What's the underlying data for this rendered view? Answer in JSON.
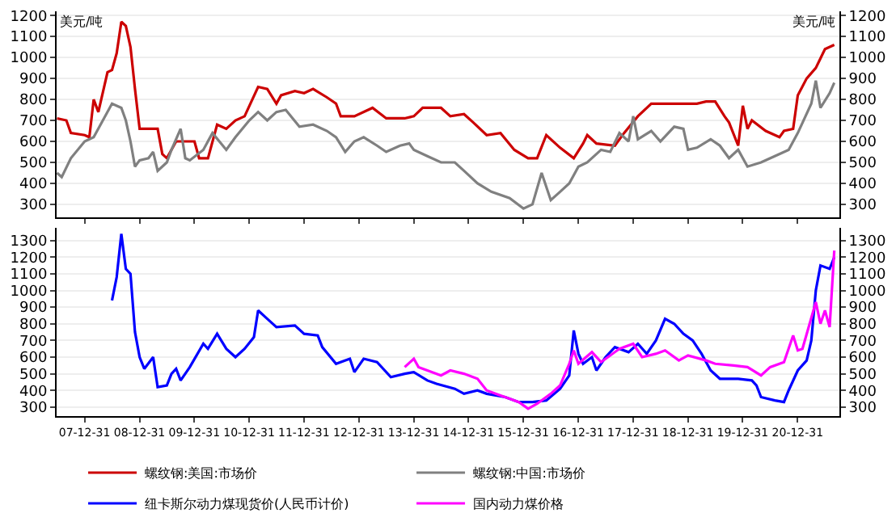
{
  "chart_data": [
    {
      "type": "line",
      "ylabel": "美元/吨",
      "y2label": "美元/吨",
      "xlim": [
        "2007-06-28",
        "2021-10-05"
      ],
      "xticks": [
        {
          "value": "2007-12-31",
          "label": null
        },
        {
          "value": "2008-12-31",
          "label": null
        },
        {
          "value": "2009-12-31",
          "label": null
        },
        {
          "value": "2010-12-31",
          "label": null
        },
        {
          "value": "2011-12-31",
          "label": null
        },
        {
          "value": "2012-12-31",
          "label": null
        },
        {
          "value": "2013-12-31",
          "label": null
        },
        {
          "value": "2014-12-31",
          "label": null
        },
        {
          "value": "2015-12-31",
          "label": null
        },
        {
          "value": "2016-12-31",
          "label": null
        },
        {
          "value": "2017-12-31",
          "label": null
        },
        {
          "value": "2018-12-31",
          "label": null
        },
        {
          "value": "2019-12-31",
          "label": null
        },
        {
          "value": "2020-12-31",
          "label": null
        }
      ],
      "ylim": [
        240,
        1220
      ],
      "yticks": [
        300,
        400,
        500,
        600,
        700,
        800,
        900,
        1000,
        1100,
        1200
      ],
      "y2lim": [
        240,
        1220
      ],
      "y2ticks": [
        300,
        400,
        500,
        600,
        700,
        800,
        900,
        1000,
        1100,
        1200
      ],
      "tick_labels": "y",
      "grid": "y",
      "legend": "bottom",
      "series": [
        {
          "name": "螺纹钢:美国:市场价",
          "color": "#cc0000",
          "x": [
            "2007-07",
            "2007-09",
            "2007-10",
            "2008-01",
            "2008-02",
            "2008-03",
            "2008-04",
            "2008-06",
            "2008-07",
            "2008-08",
            "2008-09",
            "2008-10",
            "2008-11",
            "2008-12",
            "2009-01",
            "2009-05",
            "2009-06",
            "2009-07",
            "2009-09",
            "2010-01",
            "2010-02",
            "2010-04",
            "2010-06",
            "2010-08",
            "2010-10",
            "2010-12",
            "2011-03",
            "2011-05",
            "2011-07",
            "2011-08",
            "2011-11",
            "2012-01",
            "2012-03",
            "2012-06",
            "2012-08",
            "2012-09",
            "2012-12",
            "2013-04",
            "2013-07",
            "2013-11",
            "2014-01",
            "2014-03",
            "2014-07",
            "2014-09",
            "2014-12",
            "2015-02",
            "2015-05",
            "2015-08",
            "2015-11",
            "2016-02",
            "2016-04",
            "2016-06",
            "2016-09",
            "2016-12",
            "2017-02",
            "2017-03",
            "2017-05",
            "2017-09",
            "2017-11",
            "2018-02",
            "2018-05",
            "2018-11",
            "2019-03",
            "2019-05",
            "2019-07",
            "2019-09",
            "2019-10",
            "2019-12",
            "2020-01",
            "2020-02",
            "2020-03",
            "2020-06",
            "2020-09",
            "2020-10",
            "2020-12",
            "2021-01",
            "2021-03",
            "2021-05",
            "2021-07",
            "2021-09"
          ],
          "values": [
            710,
            700,
            640,
            630,
            620,
            800,
            740,
            930,
            940,
            1020,
            1170,
            1150,
            1050,
            850,
            660,
            660,
            540,
            520,
            600,
            600,
            520,
            520,
            680,
            660,
            700,
            720,
            860,
            850,
            780,
            820,
            840,
            830,
            850,
            810,
            780,
            720,
            720,
            760,
            710,
            710,
            720,
            760,
            760,
            720,
            730,
            690,
            630,
            640,
            560,
            520,
            520,
            630,
            570,
            520,
            590,
            630,
            590,
            580,
            640,
            720,
            780,
            780,
            780,
            790,
            790,
            720,
            690,
            580,
            770,
            660,
            700,
            650,
            620,
            650,
            660,
            820,
            900,
            950,
            1040,
            1060
          ]
        },
        {
          "name": "螺纹钢:中国:市场价",
          "color": "#808080",
          "x": [
            "2007-07",
            "2007-08",
            "2007-10",
            "2008-01",
            "2008-03",
            "2008-05",
            "2008-07",
            "2008-09",
            "2008-10",
            "2008-11",
            "2008-12",
            "2009-01",
            "2009-03",
            "2009-04",
            "2009-05",
            "2009-07",
            "2009-08",
            "2009-10",
            "2009-11",
            "2009-12",
            "2010-03",
            "2010-05",
            "2010-08",
            "2010-10",
            "2011-01",
            "2011-03",
            "2011-05",
            "2011-07",
            "2011-09",
            "2011-12",
            "2012-03",
            "2012-06",
            "2012-08",
            "2012-10",
            "2012-12",
            "2013-02",
            "2013-05",
            "2013-07",
            "2013-10",
            "2013-12",
            "2014-01",
            "2014-04",
            "2014-07",
            "2014-10",
            "2014-12",
            "2015-03",
            "2015-06",
            "2015-10",
            "2016-01",
            "2016-03",
            "2016-05",
            "2016-07",
            "2016-09",
            "2016-11",
            "2017-01",
            "2017-03",
            "2017-06",
            "2017-08",
            "2017-10",
            "2017-12",
            "2018-01",
            "2018-02",
            "2018-05",
            "2018-07",
            "2018-10",
            "2018-12",
            "2019-01",
            "2019-03",
            "2019-06",
            "2019-08",
            "2019-10",
            "2019-12",
            "2020-02",
            "2020-05",
            "2020-08",
            "2020-11",
            "2021-01",
            "2021-04",
            "2021-05",
            "2021-06",
            "2021-08",
            "2021-09"
          ],
          "values": [
            450,
            430,
            520,
            600,
            620,
            700,
            780,
            760,
            700,
            600,
            480,
            510,
            520,
            550,
            460,
            500,
            560,
            660,
            520,
            510,
            560,
            640,
            560,
            620,
            700,
            740,
            700,
            740,
            750,
            670,
            680,
            650,
            620,
            550,
            600,
            620,
            580,
            550,
            580,
            590,
            560,
            530,
            500,
            500,
            460,
            400,
            360,
            330,
            280,
            300,
            450,
            320,
            360,
            400,
            480,
            500,
            560,
            550,
            640,
            600,
            720,
            610,
            650,
            600,
            670,
            660,
            560,
            570,
            610,
            580,
            520,
            560,
            480,
            500,
            530,
            560,
            640,
            780,
            890,
            760,
            830,
            880
          ]
        }
      ]
    },
    {
      "type": "line",
      "xlim": [
        "2007-06-28",
        "2021-10-05"
      ],
      "xticks": [
        {
          "value": "2007-12-31",
          "label": "07-12-31"
        },
        {
          "value": "2008-12-31",
          "label": "08-12-31"
        },
        {
          "value": "2009-12-31",
          "label": "09-12-31"
        },
        {
          "value": "2010-12-31",
          "label": "10-12-31"
        },
        {
          "value": "2011-12-31",
          "label": "11-12-31"
        },
        {
          "value": "2012-12-31",
          "label": "12-12-31"
        },
        {
          "value": "2013-12-31",
          "label": "13-12-31"
        },
        {
          "value": "2014-12-31",
          "label": "14-12-31"
        },
        {
          "value": "2015-12-31",
          "label": "15-12-31"
        },
        {
          "value": "2016-12-31",
          "label": "16-12-31"
        },
        {
          "value": "2017-12-31",
          "label": "17-12-31"
        },
        {
          "value": "2018-12-31",
          "label": "18-12-31"
        },
        {
          "value": "2019-12-31",
          "label": "19-12-31"
        },
        {
          "value": "2020-12-31",
          "label": "20-12-31"
        }
      ],
      "ylim": [
        245,
        1375
      ],
      "yticks": [
        300,
        400,
        500,
        600,
        700,
        800,
        900,
        1000,
        1100,
        1200,
        1300
      ],
      "y2lim": [
        245,
        1375
      ],
      "y2ticks": [
        300,
        400,
        500,
        600,
        700,
        800,
        900,
        1000,
        1100,
        1200,
        1300
      ],
      "grid": "y",
      "legend": "bottom",
      "series": [
        {
          "name": "纽卡斯尔动力煤现货价(人民币计价)",
          "color": "#0000ff",
          "x": [
            "2008-07",
            "2008-08",
            "2008-09",
            "2008-10",
            "2008-11",
            "2008-12",
            "2009-01",
            "2009-02",
            "2009-04",
            "2009-05",
            "2009-07",
            "2009-08",
            "2009-09",
            "2009-10",
            "2009-12",
            "2010-03",
            "2010-04",
            "2010-06",
            "2010-08",
            "2010-10",
            "2010-12",
            "2011-02",
            "2011-03",
            "2011-05",
            "2011-07",
            "2011-11",
            "2012-01",
            "2012-04",
            "2012-05",
            "2012-08",
            "2012-11",
            "2012-12",
            "2013-02",
            "2013-05",
            "2013-08",
            "2013-11",
            "2014-01",
            "2014-04",
            "2014-06",
            "2014-10",
            "2014-12",
            "2015-03",
            "2015-05",
            "2015-09",
            "2015-12",
            "2016-03",
            "2016-06",
            "2016-09",
            "2016-11",
            "2016-12",
            "2017-01",
            "2017-02",
            "2017-04",
            "2017-05",
            "2017-07",
            "2017-09",
            "2017-12",
            "2018-02",
            "2018-04",
            "2018-06",
            "2018-08",
            "2018-10",
            "2018-12",
            "2019-02",
            "2019-04",
            "2019-06",
            "2019-08",
            "2019-12",
            "2020-03",
            "2020-04",
            "2020-05",
            "2020-08",
            "2020-10",
            "2020-11",
            "2021-01",
            "2021-03",
            "2021-04",
            "2021-05",
            "2021-06",
            "2021-08",
            "2021-09"
          ],
          "values": [
            940,
            1080,
            1340,
            1130,
            1100,
            750,
            600,
            530,
            600,
            420,
            430,
            500,
            530,
            460,
            540,
            680,
            650,
            740,
            650,
            600,
            650,
            720,
            880,
            830,
            780,
            790,
            740,
            730,
            660,
            560,
            590,
            510,
            590,
            570,
            480,
            500,
            510,
            460,
            440,
            410,
            380,
            400,
            380,
            360,
            330,
            330,
            340,
            410,
            490,
            760,
            620,
            560,
            600,
            520,
            600,
            660,
            630,
            680,
            620,
            700,
            830,
            800,
            740,
            700,
            620,
            520,
            470,
            470,
            460,
            430,
            360,
            340,
            330,
            400,
            520,
            580,
            700,
            1000,
            1150,
            1130,
            1200
          ]
        },
        {
          "name": "国内动力煤价格",
          "color": "#ff00ff",
          "x": [
            "2013-11",
            "2014-01",
            "2014-02",
            "2014-04",
            "2014-07",
            "2014-09",
            "2014-12",
            "2015-03",
            "2015-05",
            "2015-08",
            "2015-10",
            "2015-12",
            "2016-02",
            "2016-04",
            "2016-07",
            "2016-09",
            "2016-11",
            "2016-12",
            "2017-01",
            "2017-04",
            "2017-06",
            "2017-10",
            "2018-01",
            "2018-03",
            "2018-06",
            "2018-08",
            "2018-11",
            "2019-01",
            "2019-05",
            "2019-07",
            "2019-11",
            "2020-02",
            "2020-05",
            "2020-07",
            "2020-10",
            "2020-12",
            "2021-01",
            "2021-02",
            "2021-05",
            "2021-06",
            "2021-07",
            "2021-08",
            "2021-09"
          ],
          "values": [
            540,
            590,
            540,
            520,
            490,
            520,
            500,
            470,
            400,
            370,
            350,
            330,
            290,
            320,
            380,
            430,
            560,
            640,
            560,
            630,
            570,
            650,
            680,
            600,
            620,
            640,
            580,
            610,
            580,
            560,
            550,
            540,
            490,
            540,
            570,
            730,
            640,
            650,
            930,
            800,
            880,
            780,
            1240
          ]
        }
      ]
    }
  ]
}
